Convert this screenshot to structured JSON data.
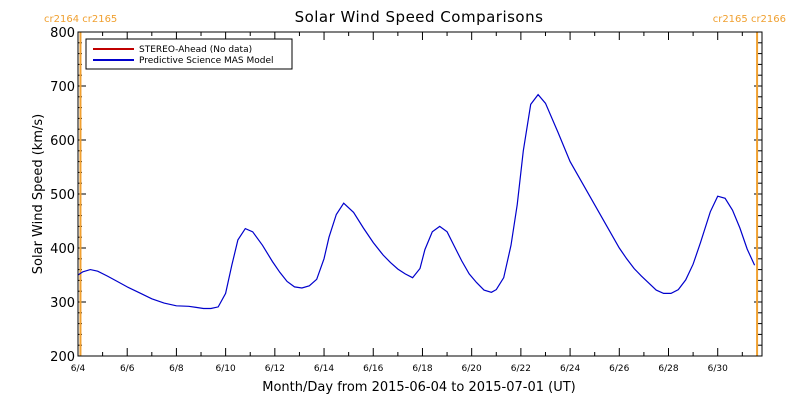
{
  "chart_data": {
    "type": "line",
    "title": "Solar Wind Speed Comparisons",
    "xlabel": "Month/Day from 2015-06-04 to 2015-07-01 (UT)",
    "ylabel": "Solar Wind Speed (km/s)",
    "xlim": [
      0,
      27.8
    ],
    "ylim": [
      200,
      800
    ],
    "y_ticks": [
      200,
      300,
      400,
      500,
      600,
      700,
      800
    ],
    "x_ticks": [
      {
        "day": 0,
        "label": "6/4"
      },
      {
        "day": 2,
        "label": "6/6"
      },
      {
        "day": 4,
        "label": "6/8"
      },
      {
        "day": 6,
        "label": "6/10"
      },
      {
        "day": 8,
        "label": "6/12"
      },
      {
        "day": 10,
        "label": "6/14"
      },
      {
        "day": 12,
        "label": "6/16"
      },
      {
        "day": 14,
        "label": "6/18"
      },
      {
        "day": 16,
        "label": "6/20"
      },
      {
        "day": 18,
        "label": "6/22"
      },
      {
        "day": 20,
        "label": "6/24"
      },
      {
        "day": 22,
        "label": "6/26"
      },
      {
        "day": 24,
        "label": "6/28"
      },
      {
        "day": 26,
        "label": "6/30"
      }
    ],
    "carrington_markers": [
      {
        "day": 0.1,
        "label": "cr2164 cr2165",
        "side": "left"
      },
      {
        "day": 27.6,
        "label": "cr2165 cr2166",
        "side": "right"
      }
    ],
    "marker_color": "#f0a030",
    "series": [
      {
        "name": "STEREO-Ahead (No data)",
        "color": "#c00000",
        "x": [],
        "y": []
      },
      {
        "name": "Predictive Science MAS Model",
        "color": "#0000cc",
        "x": [
          0,
          0.2,
          0.5,
          0.8,
          1.2,
          1.6,
          2.0,
          2.5,
          3.0,
          3.5,
          4.0,
          4.5,
          4.8,
          5.1,
          5.4,
          5.7,
          6.0,
          6.25,
          6.5,
          6.8,
          7.1,
          7.5,
          7.9,
          8.2,
          8.5,
          8.8,
          9.1,
          9.4,
          9.7,
          10.0,
          10.2,
          10.5,
          10.8,
          11.2,
          11.6,
          12.0,
          12.4,
          12.7,
          13.0,
          13.3,
          13.6,
          13.9,
          14.1,
          14.4,
          14.7,
          15.0,
          15.3,
          15.6,
          15.9,
          16.2,
          16.5,
          16.8,
          17.0,
          17.3,
          17.6,
          17.85,
          18.1,
          18.4,
          18.7,
          19.0,
          19.5,
          20.0,
          20.5,
          21.0,
          21.5,
          22.0,
          22.3,
          22.6,
          22.9,
          23.2,
          23.5,
          23.8,
          24.1,
          24.4,
          24.7,
          25.0,
          25.3,
          25.7,
          26.0,
          26.3,
          26.6,
          26.9,
          27.2,
          27.5
        ],
        "y": [
          350,
          356,
          360,
          357,
          348,
          338,
          328,
          317,
          306,
          298,
          293,
          292,
          290,
          288,
          288,
          291,
          316,
          368,
          415,
          436,
          430,
          405,
          375,
          355,
          338,
          328,
          326,
          330,
          342,
          380,
          420,
          462,
          483,
          466,
          437,
          410,
          387,
          373,
          361,
          352,
          345,
          362,
          397,
          430,
          440,
          430,
          403,
          376,
          352,
          336,
          322,
          318,
          323,
          345,
          405,
          480,
          580,
          666,
          684,
          668,
          615,
          560,
          520,
          480,
          440,
          400,
          380,
          362,
          348,
          335,
          322,
          316,
          316,
          323,
          341,
          370,
          410,
          467,
          496,
          492,
          470,
          437,
          398,
          368
        ]
      }
    ]
  }
}
